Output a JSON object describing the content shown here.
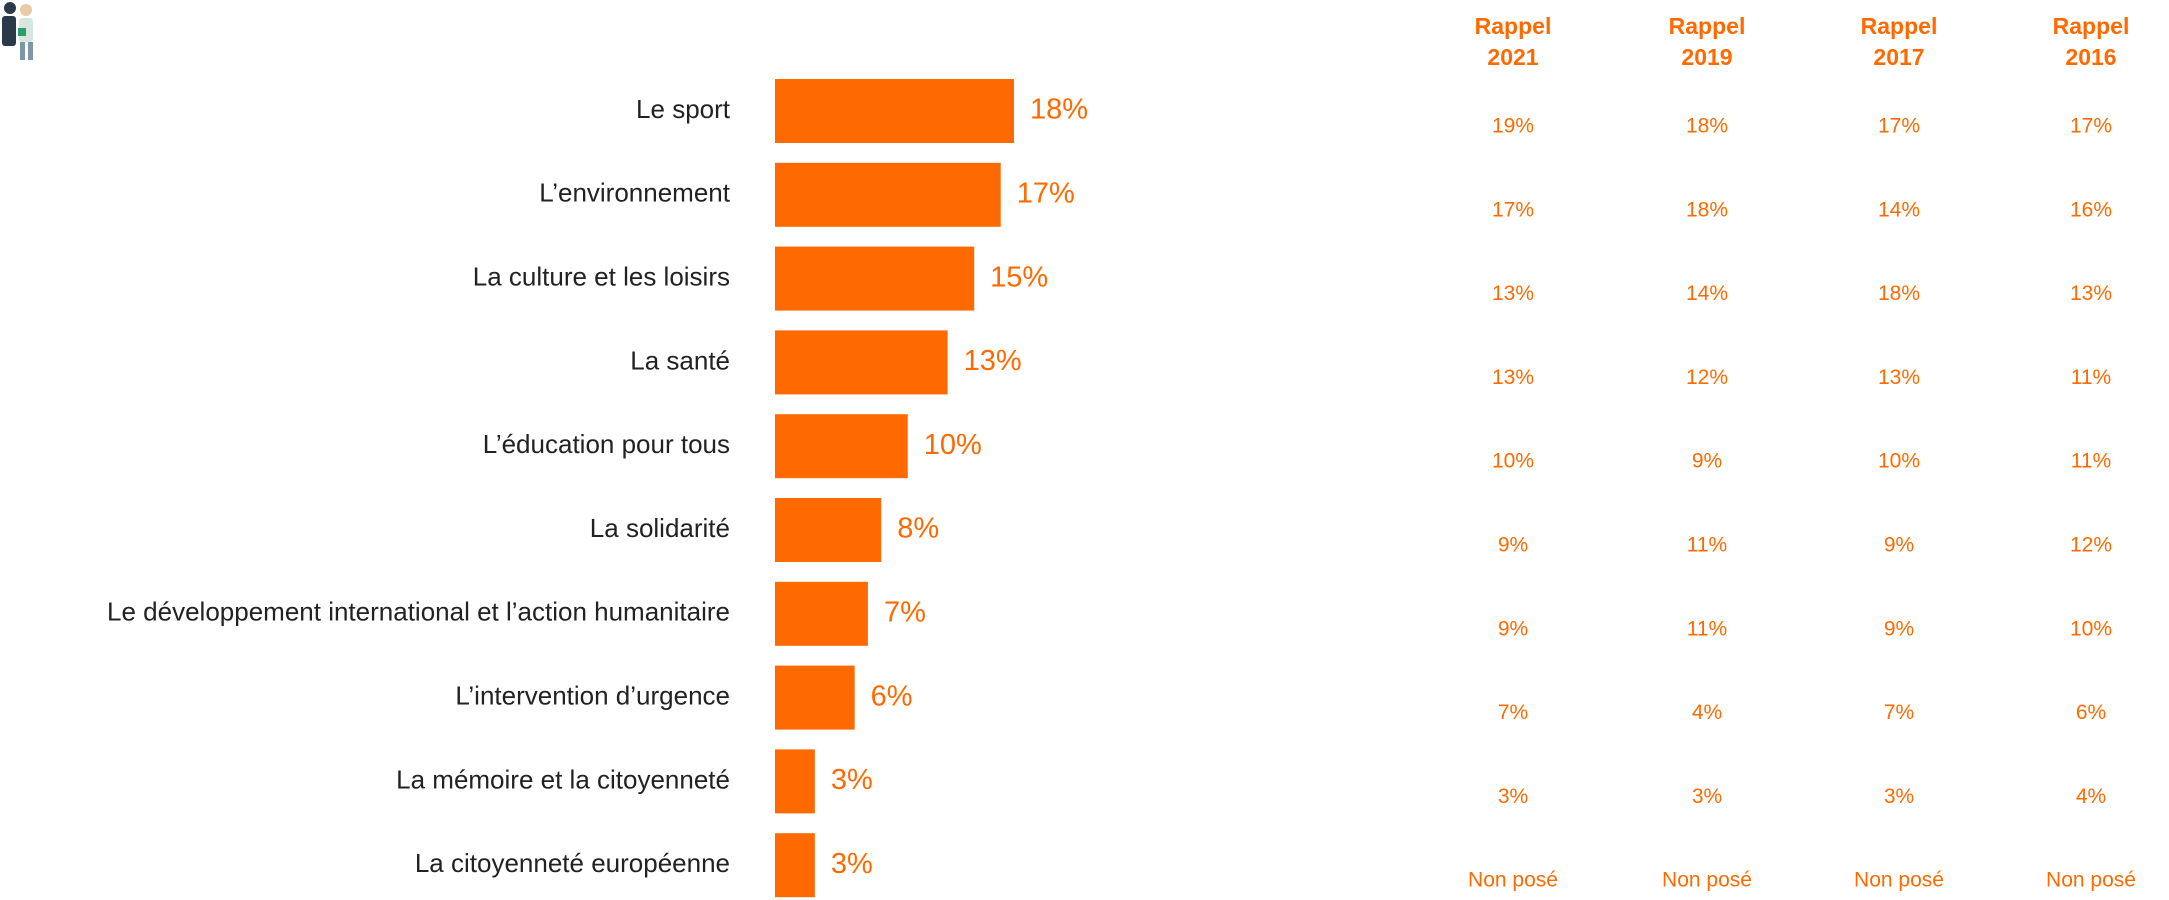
{
  "chart_data": {
    "type": "bar",
    "orientation": "horizontal",
    "categories": [
      "Le sport",
      "L’environnement",
      "La culture et les loisirs",
      "La santé",
      "L’éducation pour tous",
      "La solidarité",
      "Le développement international et l’action humanitaire",
      "L’intervention d’urgence",
      "La mémoire et la citoyenneté",
      "La citoyenneté européenne"
    ],
    "values": [
      18,
      17,
      15,
      13,
      10,
      8,
      7,
      6,
      3,
      3
    ],
    "value_labels": [
      "18%",
      "17%",
      "15%",
      "13%",
      "10%",
      "8%",
      "7%",
      "6%",
      "3%",
      "3%"
    ],
    "color": "#ff6a00"
  },
  "recall_table": {
    "columns": [
      {
        "title": [
          "Rappel",
          "2021"
        ],
        "values": [
          "19%",
          "17%",
          "13%",
          "13%",
          "10%",
          "9%",
          "9%",
          "7%",
          "3%",
          "Non posé"
        ]
      },
      {
        "title": [
          "Rappel",
          "2019"
        ],
        "values": [
          "18%",
          "18%",
          "14%",
          "12%",
          "9%",
          "11%",
          "11%",
          "4%",
          "3%",
          "Non posé"
        ]
      },
      {
        "title": [
          "Rappel",
          "2017"
        ],
        "values": [
          "17%",
          "14%",
          "18%",
          "13%",
          "10%",
          "9%",
          "9%",
          "7%",
          "3%",
          "Non posé"
        ]
      },
      {
        "title": [
          "Rappel",
          "2016"
        ],
        "values": [
          "17%",
          "16%",
          "13%",
          "11%",
          "11%",
          "12%",
          "10%",
          "6%",
          "4%",
          "Non posé"
        ]
      }
    ]
  }
}
